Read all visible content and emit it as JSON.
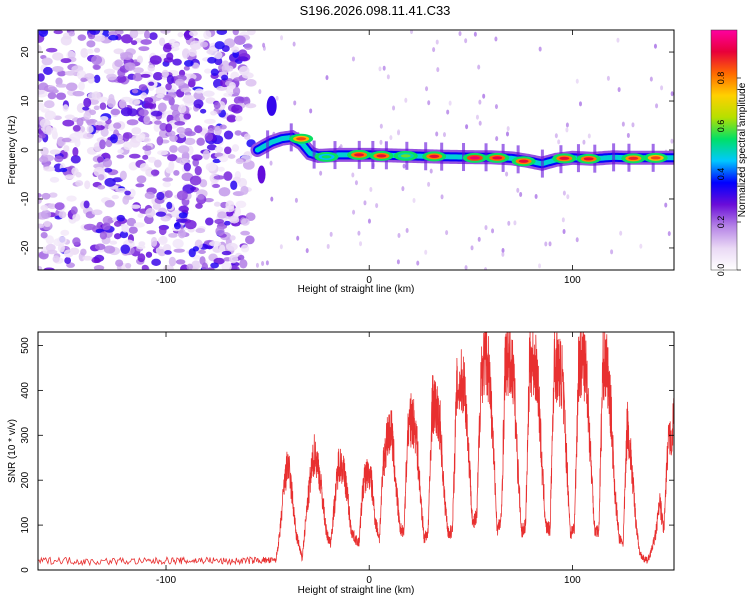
{
  "title": "S196.2026.098.11.41.C33",
  "colorbar": {
    "label": "Normalized spectral amplitude",
    "ticks": [
      "0.0",
      "0.2",
      "0.4",
      "0.6",
      "0.8"
    ],
    "tick_values": [
      0.0,
      0.2,
      0.4,
      0.6,
      0.8
    ],
    "range": [
      0,
      1
    ],
    "colormap": [
      "#ffffff",
      "#ead9f5",
      "#b583e6",
      "#6a0dd8",
      "#0000ff",
      "#00c8ff",
      "#00e066",
      "#b6e000",
      "#ffd000",
      "#ff6a00",
      "#e8003a",
      "#ff00a0"
    ]
  },
  "chart_data": [
    {
      "type": "heatmap",
      "title": "S196.2026.098.11.41.C33",
      "xlabel": "Height of straight line (km)",
      "ylabel": "Frequency (Hz)",
      "xlim": [
        -163,
        150
      ],
      "ylim": [
        -24.5,
        24.5
      ],
      "xticks": [
        -100,
        0,
        100
      ],
      "xtick_labels": [
        "-100",
        "0",
        "100"
      ],
      "yticks": [
        -20,
        -10,
        0,
        10,
        20
      ],
      "ytick_labels": [
        "-20",
        "-10",
        "0",
        "10",
        "20"
      ],
      "noise_region_km": [
        -163,
        -58
      ],
      "carrier_track": {
        "x": [
          -55,
          -48,
          -43,
          -38,
          -33,
          -29,
          -25,
          -15,
          0,
          20,
          40,
          60,
          70,
          78,
          85,
          92,
          100,
          110,
          120,
          130,
          140,
          150
        ],
        "y": [
          0.0,
          1.6,
          2.3,
          2.6,
          1.3,
          -0.7,
          -1.2,
          -1.0,
          -1.0,
          -1.2,
          -1.4,
          -1.5,
          -1.7,
          -2.2,
          -2.8,
          -2.0,
          -1.6,
          -1.8,
          -1.5,
          -1.6,
          -1.6,
          -1.6
        ]
      },
      "peak_spots": [
        {
          "x": -33.5,
          "y": 2.3,
          "amp": 0.85
        },
        {
          "x": -21,
          "y": -1.4,
          "amp": 0.55
        },
        {
          "x": -5,
          "y": -1.0,
          "amp": 0.9
        },
        {
          "x": 6,
          "y": -1.2,
          "amp": 0.9
        },
        {
          "x": 18,
          "y": -1.2,
          "amp": 0.6
        },
        {
          "x": 32,
          "y": -1.3,
          "amp": 0.9
        },
        {
          "x": 52,
          "y": -1.6,
          "amp": 0.95
        },
        {
          "x": 63,
          "y": -1.6,
          "amp": 0.92
        },
        {
          "x": 76,
          "y": -2.3,
          "amp": 0.9
        },
        {
          "x": 96,
          "y": -1.7,
          "amp": 0.9
        },
        {
          "x": 108,
          "y": -1.8,
          "amp": 0.9
        },
        {
          "x": 130,
          "y": -1.7,
          "amp": 0.88
        },
        {
          "x": 141,
          "y": -1.6,
          "amp": 0.85
        }
      ]
    },
    {
      "type": "line",
      "xlabel": "Height of straight line (km)",
      "ylabel": "SNR (10 * v/v)",
      "xlim": [
        -163,
        150
      ],
      "ylim": [
        0,
        530
      ],
      "xticks": [
        -100,
        0,
        100
      ],
      "xtick_labels": [
        "-100",
        "0",
        "100"
      ],
      "yticks": [
        0,
        100,
        200,
        300,
        400,
        500
      ],
      "ytick_labels": [
        "0",
        "100",
        "200",
        "300",
        "400",
        "500"
      ],
      "series": [
        {
          "name": "SNR",
          "color": "#e83030",
          "x": [
            -163,
            -150,
            -140,
            -125,
            -110,
            -100,
            -90,
            -80,
            -70,
            -60,
            -52,
            -46,
            -44,
            -42,
            -40,
            -38,
            -36,
            -34,
            -33,
            -31,
            -29,
            -27,
            -25,
            -23,
            -21,
            -19,
            -17,
            -15,
            -13,
            -11,
            -9,
            -7,
            -5,
            -3,
            -1,
            1,
            3,
            5,
            7,
            9,
            11,
            13,
            15,
            17,
            19,
            21,
            23,
            25,
            27,
            29,
            31,
            33,
            35,
            37,
            39,
            41,
            43,
            45,
            47,
            49,
            51,
            53,
            55,
            57,
            59,
            61,
            63,
            65,
            67,
            69,
            71,
            73,
            75,
            77,
            79,
            81,
            83,
            85,
            87,
            89,
            91,
            93,
            95,
            97,
            99,
            101,
            103,
            105,
            107,
            109,
            111,
            113,
            115,
            117,
            119,
            121,
            123,
            125,
            127,
            129,
            131,
            133,
            135,
            137,
            139,
            141,
            143,
            145,
            147,
            150
          ],
          "values": [
            20,
            22,
            18,
            20,
            19,
            21,
            20,
            22,
            19,
            21,
            22,
            20,
            80,
            180,
            240,
            170,
            80,
            45,
            25,
            120,
            200,
            260,
            230,
            160,
            80,
            60,
            150,
            240,
            230,
            180,
            90,
            70,
            60,
            190,
            220,
            200,
            110,
            70,
            240,
            300,
            310,
            200,
            95,
            80,
            310,
            340,
            310,
            180,
            70,
            85,
            370,
            360,
            320,
            160,
            80,
            90,
            400,
            420,
            410,
            260,
            100,
            120,
            440,
            470,
            450,
            280,
            90,
            110,
            470,
            460,
            440,
            240,
            85,
            100,
            470,
            460,
            430,
            230,
            95,
            90,
            460,
            450,
            430,
            260,
            80,
            95,
            450,
            470,
            440,
            250,
            90,
            85,
            460,
            450,
            350,
            170,
            70,
            60,
            330,
            240,
            120,
            40,
            25,
            20,
            45,
            80,
            150,
            90,
            270,
            330
          ]
        }
      ]
    }
  ]
}
